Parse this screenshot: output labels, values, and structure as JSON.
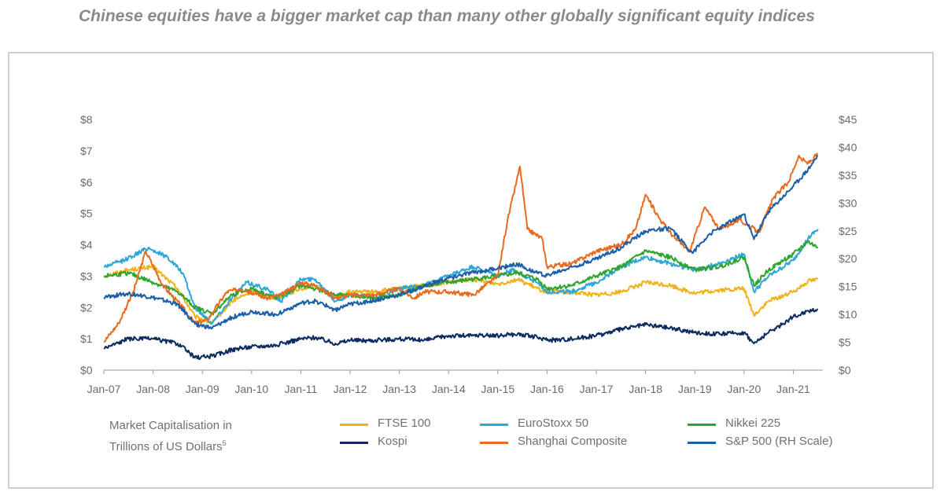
{
  "title": "Chinese equities have a bigger market cap than many other globally significant equity indices",
  "legend_note_line1": "Market Capitalisation in",
  "legend_note_line2": "Trillions of US Dollars",
  "legend_note_superscript": "5",
  "chart_data": {
    "type": "line",
    "title": "Chinese equities have a bigger market cap than many other globally significant equity indices",
    "ylabel": "Market Capitalisation in Trillions of US Dollars",
    "xlabel": "",
    "x_ticks": [
      "Jan-07",
      "Jan-08",
      "Jan-09",
      "Jan-10",
      "Jan-11",
      "Jan-12",
      "Jan-13",
      "Jan-14",
      "Jan-15",
      "Jan-16",
      "Jan-17",
      "Jan-18",
      "Jan-19",
      "Jan-20",
      "Jan-21"
    ],
    "y_left": {
      "ticks": [
        "$0",
        "$1",
        "$2",
        "$3",
        "$4",
        "$5",
        "$6",
        "$7",
        "$8"
      ],
      "ylim": [
        0,
        8
      ]
    },
    "y_right": {
      "ticks": [
        "$0",
        "$5",
        "$10",
        "$15",
        "$20",
        "$25",
        "$30",
        "$35",
        "$40",
        "$45"
      ],
      "ylim": [
        0,
        45
      ]
    },
    "xlim": [
      2007.0,
      2021.6
    ],
    "grid": false,
    "legend_position": "bottom",
    "series": [
      {
        "name": "FTSE 100",
        "color": "#f0b21a",
        "axis": "left",
        "points": [
          [
            2007.0,
            3.0
          ],
          [
            2007.5,
            3.2
          ],
          [
            2008.0,
            3.3
          ],
          [
            2008.5,
            2.6
          ],
          [
            2008.85,
            1.7
          ],
          [
            2009.2,
            1.5
          ],
          [
            2009.6,
            2.2
          ],
          [
            2010.0,
            2.5
          ],
          [
            2010.5,
            2.3
          ],
          [
            2011.0,
            2.6
          ],
          [
            2011.3,
            2.7
          ],
          [
            2011.7,
            2.3
          ],
          [
            2012.0,
            2.5
          ],
          [
            2012.5,
            2.5
          ],
          [
            2013.0,
            2.6
          ],
          [
            2013.5,
            2.7
          ],
          [
            2014.0,
            2.8
          ],
          [
            2014.5,
            2.9
          ],
          [
            2015.0,
            2.75
          ],
          [
            2015.4,
            2.9
          ],
          [
            2015.8,
            2.6
          ],
          [
            2016.0,
            2.5
          ],
          [
            2016.5,
            2.5
          ],
          [
            2017.0,
            2.4
          ],
          [
            2017.5,
            2.5
          ],
          [
            2018.0,
            2.8
          ],
          [
            2018.5,
            2.7
          ],
          [
            2019.0,
            2.45
          ],
          [
            2019.5,
            2.55
          ],
          [
            2020.0,
            2.6
          ],
          [
            2020.2,
            1.75
          ],
          [
            2020.5,
            2.2
          ],
          [
            2021.0,
            2.5
          ],
          [
            2021.3,
            2.85
          ],
          [
            2021.5,
            2.9
          ]
        ]
      },
      {
        "name": "EuroStoxx 50",
        "color": "#2fa6d8",
        "axis": "left",
        "points": [
          [
            2007.0,
            3.3
          ],
          [
            2007.4,
            3.5
          ],
          [
            2007.9,
            3.9
          ],
          [
            2008.3,
            3.6
          ],
          [
            2008.6,
            3.1
          ],
          [
            2008.85,
            2.0
          ],
          [
            2009.2,
            1.5
          ],
          [
            2009.6,
            2.3
          ],
          [
            2009.9,
            2.8
          ],
          [
            2010.3,
            2.6
          ],
          [
            2010.6,
            2.2
          ],
          [
            2011.0,
            2.9
          ],
          [
            2011.3,
            2.9
          ],
          [
            2011.7,
            2.2
          ],
          [
            2012.0,
            2.4
          ],
          [
            2012.5,
            2.3
          ],
          [
            2013.0,
            2.6
          ],
          [
            2013.5,
            2.7
          ],
          [
            2014.0,
            3.0
          ],
          [
            2014.5,
            3.3
          ],
          [
            2015.0,
            3.0
          ],
          [
            2015.3,
            3.2
          ],
          [
            2015.8,
            2.8
          ],
          [
            2016.0,
            2.5
          ],
          [
            2016.5,
            2.5
          ],
          [
            2017.0,
            2.8
          ],
          [
            2017.5,
            3.3
          ],
          [
            2018.0,
            3.6
          ],
          [
            2018.5,
            3.4
          ],
          [
            2019.0,
            3.2
          ],
          [
            2019.5,
            3.4
          ],
          [
            2020.0,
            3.7
          ],
          [
            2020.2,
            2.5
          ],
          [
            2020.5,
            3.0
          ],
          [
            2021.0,
            3.5
          ],
          [
            2021.3,
            4.2
          ],
          [
            2021.5,
            4.5
          ]
        ]
      },
      {
        "name": "Nikkei 225",
        "color": "#2da42e",
        "axis": "left",
        "points": [
          [
            2007.0,
            3.0
          ],
          [
            2007.5,
            3.1
          ],
          [
            2008.0,
            2.8
          ],
          [
            2008.5,
            2.5
          ],
          [
            2008.85,
            2.0
          ],
          [
            2009.2,
            1.8
          ],
          [
            2009.6,
            2.4
          ],
          [
            2010.0,
            2.6
          ],
          [
            2010.5,
            2.3
          ],
          [
            2011.0,
            2.7
          ],
          [
            2011.3,
            2.6
          ],
          [
            2011.7,
            2.4
          ],
          [
            2012.0,
            2.4
          ],
          [
            2012.5,
            2.3
          ],
          [
            2013.0,
            2.4
          ],
          [
            2013.5,
            2.7
          ],
          [
            2014.0,
            2.8
          ],
          [
            2014.5,
            2.9
          ],
          [
            2015.0,
            3.0
          ],
          [
            2015.4,
            3.1
          ],
          [
            2015.8,
            2.9
          ],
          [
            2016.0,
            2.6
          ],
          [
            2016.5,
            2.7
          ],
          [
            2017.0,
            3.0
          ],
          [
            2017.5,
            3.3
          ],
          [
            2018.0,
            3.8
          ],
          [
            2018.5,
            3.6
          ],
          [
            2019.0,
            3.2
          ],
          [
            2019.5,
            3.3
          ],
          [
            2020.0,
            3.6
          ],
          [
            2020.2,
            2.7
          ],
          [
            2020.5,
            3.2
          ],
          [
            2021.0,
            3.7
          ],
          [
            2021.3,
            4.1
          ],
          [
            2021.5,
            3.9
          ]
        ]
      },
      {
        "name": "Kospi",
        "color": "#0d2b5e",
        "axis": "left",
        "points": [
          [
            2007.0,
            0.7
          ],
          [
            2007.5,
            1.0
          ],
          [
            2008.0,
            1.0
          ],
          [
            2008.5,
            0.85
          ],
          [
            2008.85,
            0.4
          ],
          [
            2009.2,
            0.45
          ],
          [
            2009.6,
            0.65
          ],
          [
            2010.0,
            0.75
          ],
          [
            2010.5,
            0.8
          ],
          [
            2011.0,
            1.0
          ],
          [
            2011.3,
            1.05
          ],
          [
            2011.7,
            0.85
          ],
          [
            2012.0,
            0.95
          ],
          [
            2012.5,
            0.95
          ],
          [
            2013.0,
            1.0
          ],
          [
            2013.5,
            0.95
          ],
          [
            2014.0,
            1.1
          ],
          [
            2014.5,
            1.1
          ],
          [
            2015.0,
            1.1
          ],
          [
            2015.4,
            1.15
          ],
          [
            2015.8,
            1.05
          ],
          [
            2016.0,
            0.95
          ],
          [
            2016.5,
            1.0
          ],
          [
            2017.0,
            1.1
          ],
          [
            2017.5,
            1.3
          ],
          [
            2018.0,
            1.45
          ],
          [
            2018.5,
            1.35
          ],
          [
            2019.0,
            1.2
          ],
          [
            2019.5,
            1.15
          ],
          [
            2020.0,
            1.2
          ],
          [
            2020.2,
            0.85
          ],
          [
            2020.5,
            1.2
          ],
          [
            2021.0,
            1.7
          ],
          [
            2021.3,
            1.9
          ],
          [
            2021.5,
            1.95
          ]
        ]
      },
      {
        "name": "Shanghai Composite",
        "color": "#e86a1e",
        "axis": "left",
        "points": [
          [
            2007.0,
            0.9
          ],
          [
            2007.3,
            1.5
          ],
          [
            2007.6,
            2.5
          ],
          [
            2007.85,
            3.8
          ],
          [
            2008.2,
            2.7
          ],
          [
            2008.6,
            2.0
          ],
          [
            2008.85,
            1.5
          ],
          [
            2009.1,
            1.6
          ],
          [
            2009.5,
            2.5
          ],
          [
            2009.8,
            2.6
          ],
          [
            2010.3,
            2.3
          ],
          [
            2010.6,
            2.4
          ],
          [
            2011.0,
            2.8
          ],
          [
            2011.3,
            2.7
          ],
          [
            2011.7,
            2.3
          ],
          [
            2012.0,
            2.4
          ],
          [
            2012.5,
            2.4
          ],
          [
            2013.0,
            2.6
          ],
          [
            2013.3,
            2.3
          ],
          [
            2013.5,
            2.5
          ],
          [
            2014.0,
            2.5
          ],
          [
            2014.5,
            2.4
          ],
          [
            2015.0,
            3.0
          ],
          [
            2015.2,
            4.8
          ],
          [
            2015.45,
            6.5
          ],
          [
            2015.6,
            4.5
          ],
          [
            2015.9,
            4.2
          ],
          [
            2016.0,
            3.3
          ],
          [
            2016.5,
            3.4
          ],
          [
            2017.0,
            3.8
          ],
          [
            2017.5,
            4.0
          ],
          [
            2017.8,
            4.5
          ],
          [
            2018.0,
            5.6
          ],
          [
            2018.3,
            4.8
          ],
          [
            2018.6,
            4.2
          ],
          [
            2018.9,
            3.8
          ],
          [
            2019.2,
            5.2
          ],
          [
            2019.5,
            4.5
          ],
          [
            2019.9,
            4.8
          ],
          [
            2020.1,
            4.6
          ],
          [
            2020.3,
            4.4
          ],
          [
            2020.6,
            5.5
          ],
          [
            2020.9,
            6.0
          ],
          [
            2021.1,
            6.8
          ],
          [
            2021.3,
            6.6
          ],
          [
            2021.5,
            6.9
          ]
        ]
      },
      {
        "name": "S&P 500 (RH Scale)",
        "color": "#1d5fa6",
        "axis": "right",
        "points": [
          [
            2007.0,
            13.0
          ],
          [
            2007.5,
            13.8
          ],
          [
            2008.0,
            13.0
          ],
          [
            2008.5,
            11.8
          ],
          [
            2008.85,
            8.3
          ],
          [
            2009.2,
            7.5
          ],
          [
            2009.6,
            9.5
          ],
          [
            2010.0,
            10.5
          ],
          [
            2010.5,
            10.0
          ],
          [
            2011.0,
            12.0
          ],
          [
            2011.3,
            12.4
          ],
          [
            2011.7,
            10.8
          ],
          [
            2012.0,
            11.8
          ],
          [
            2012.5,
            12.5
          ],
          [
            2013.0,
            13.5
          ],
          [
            2013.5,
            15.0
          ],
          [
            2014.0,
            16.5
          ],
          [
            2014.5,
            17.5
          ],
          [
            2015.0,
            18.3
          ],
          [
            2015.4,
            19.0
          ],
          [
            2015.8,
            17.5
          ],
          [
            2016.0,
            17.0
          ],
          [
            2016.5,
            18.5
          ],
          [
            2017.0,
            20.0
          ],
          [
            2017.5,
            22.0
          ],
          [
            2018.0,
            25.0
          ],
          [
            2018.5,
            25.5
          ],
          [
            2018.95,
            21.0
          ],
          [
            2019.3,
            24.5
          ],
          [
            2019.6,
            26.0
          ],
          [
            2020.0,
            28.0
          ],
          [
            2020.2,
            23.5
          ],
          [
            2020.5,
            28.5
          ],
          [
            2021.0,
            33.0
          ],
          [
            2021.3,
            36.0
          ],
          [
            2021.5,
            38.5
          ]
        ]
      }
    ]
  }
}
